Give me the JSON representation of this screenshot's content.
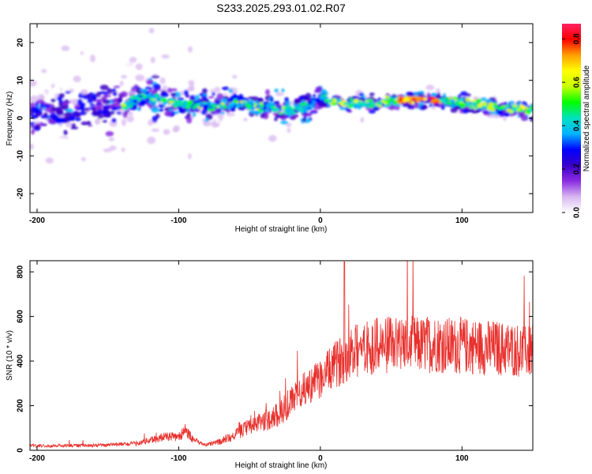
{
  "figure": {
    "title": "S233.2025.293.01.02.R07"
  },
  "chart_data": [
    {
      "id": "spectrogram",
      "type": "heatmap",
      "xlabel": "Height of straight line (km)",
      "ylabel": "Frequency (Hz)",
      "xlim": [
        -205,
        150
      ],
      "ylim": [
        -25,
        25
      ],
      "xticks": [
        -200,
        -100,
        0,
        100
      ],
      "yticks": [
        -20,
        -10,
        0,
        10,
        20
      ],
      "ridge_frequency": {
        "x": [
          -205,
          -180,
          -160,
          -140,
          -125,
          -115,
          -100,
          -80,
          -60,
          -40,
          -20,
          0,
          20,
          40,
          60,
          80,
          100,
          120,
          150
        ],
        "y": [
          1,
          2,
          3,
          3,
          6,
          5,
          4,
          3,
          4,
          3,
          2,
          5,
          4,
          4,
          5,
          5,
          4,
          3,
          2
        ]
      },
      "colorbar": {
        "label": "Normalized spectral amplitude",
        "range": [
          0,
          0.87
        ],
        "ticks": [
          0.0,
          0.2,
          0.4,
          0.6,
          0.8
        ],
        "tick_labels": [
          "0.0",
          "0.2",
          "0.4",
          "0.6",
          "0.8"
        ],
        "colors": [
          "#ffffff",
          "#d8b8f0",
          "#8a2be2",
          "#3a00c8",
          "#0000ff",
          "#00b4ff",
          "#00e0c0",
          "#00ff00",
          "#c8ff00",
          "#ffff00",
          "#ffa000",
          "#ff0000",
          "#ff2060"
        ]
      }
    },
    {
      "id": "snr",
      "type": "line",
      "xlabel": "Height of straight line (km)",
      "ylabel": "SNR (10 * v/v)",
      "xlim": [
        -205,
        150
      ],
      "ylim": [
        0,
        850
      ],
      "xticks": [
        -200,
        -100,
        0,
        100
      ],
      "yticks": [
        0,
        200,
        400,
        600,
        800
      ],
      "color": "#e8302c",
      "series": [
        {
          "name": "SNR",
          "x": [
            -205,
            -190,
            -175,
            -160,
            -145,
            -130,
            -120,
            -110,
            -100,
            -95,
            -90,
            -85,
            -80,
            -70,
            -60,
            -50,
            -40,
            -30,
            -20,
            -15,
            -10,
            0,
            10,
            20,
            30,
            40,
            50,
            60,
            70,
            80,
            90,
            100,
            110,
            120,
            130,
            140,
            150
          ],
          "y": [
            20,
            20,
            22,
            22,
            25,
            30,
            45,
            60,
            60,
            90,
            50,
            30,
            25,
            40,
            70,
            110,
            130,
            160,
            220,
            260,
            280,
            320,
            380,
            430,
            460,
            470,
            470,
            480,
            470,
            480,
            470,
            470,
            465,
            460,
            455,
            450,
            440
          ]
        }
      ]
    }
  ]
}
